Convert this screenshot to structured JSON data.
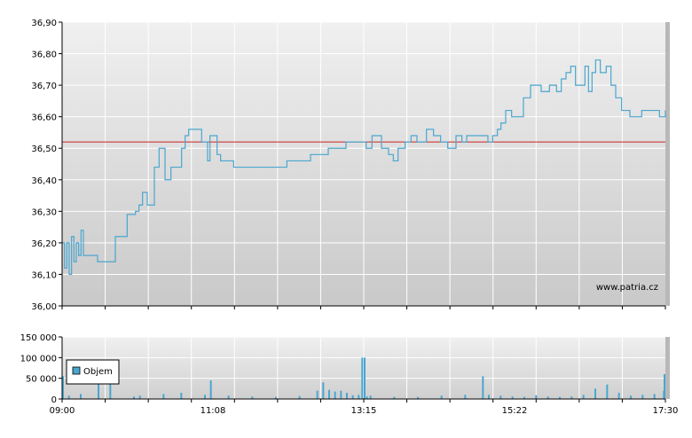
{
  "chart_data": [
    {
      "type": "line",
      "watermark": "www.patria.cz",
      "y_ticks": [
        "36,00",
        "36,10",
        "36,20",
        "36,30",
        "36,40",
        "36,50",
        "36,60",
        "36,70",
        "36,80",
        "36,90"
      ],
      "ylim": [
        36.0,
        36.9
      ],
      "xlim": [
        "09:00",
        "17:30"
      ],
      "x_tick_labels": [
        "09:00",
        "11:08",
        "13:15",
        "15:22",
        "17:30"
      ],
      "reference_line": 36.52,
      "colors": {
        "line": "#4aa6cf",
        "reference": "#cc2222",
        "grid": "#ffffff"
      },
      "series": [
        {
          "x": [
            "09:00",
            "09:02",
            "09:04",
            "09:06",
            "09:08",
            "09:10",
            "09:12",
            "09:14",
            "09:16",
            "09:18",
            "09:20",
            "09:24",
            "09:30",
            "09:45",
            "09:55",
            "10:02",
            "10:05",
            "10:08",
            "10:12",
            "10:18",
            "10:22",
            "10:27",
            "10:32",
            "10:35",
            "10:38",
            "10:41",
            "10:44",
            "10:47",
            "10:55",
            "10:58",
            "11:03",
            "11:05",
            "11:08",
            "11:11",
            "11:14",
            "11:17",
            "11:20",
            "11:25",
            "11:35",
            "11:40",
            "11:50",
            "12:10",
            "12:30",
            "12:45",
            "13:00",
            "13:10",
            "13:12",
            "13:17",
            "13:22",
            "13:30",
            "13:36",
            "13:40",
            "13:44",
            "13:50",
            "13:55",
            "14:00",
            "14:08",
            "14:14",
            "14:20",
            "14:26",
            "14:33",
            "14:38",
            "14:42",
            "14:46",
            "14:52",
            "15:00",
            "15:04",
            "15:08",
            "15:11",
            "15:15",
            "15:20",
            "15:26",
            "15:30",
            "15:36",
            "15:40",
            "15:45",
            "15:52",
            "15:58",
            "16:02",
            "16:06",
            "16:10",
            "16:14",
            "16:19",
            "16:22",
            "16:25",
            "16:28",
            "16:31",
            "16:35",
            "16:40",
            "16:44",
            "16:48",
            "16:53",
            "17:00",
            "17:05",
            "17:10",
            "17:15",
            "17:20",
            "17:25",
            "17:30"
          ],
          "values": [
            36.2,
            36.12,
            36.2,
            36.1,
            36.22,
            36.14,
            36.2,
            36.16,
            36.24,
            36.16,
            36.16,
            36.16,
            36.14,
            36.22,
            36.29,
            36.3,
            36.32,
            36.36,
            36.32,
            36.44,
            36.5,
            36.4,
            36.44,
            36.44,
            36.44,
            36.5,
            36.54,
            36.56,
            36.56,
            36.52,
            36.46,
            36.54,
            36.54,
            36.48,
            36.46,
            36.46,
            36.46,
            36.44,
            36.44,
            36.44,
            36.44,
            36.46,
            36.48,
            36.5,
            36.52,
            36.52,
            36.52,
            36.5,
            36.54,
            36.5,
            36.48,
            36.46,
            36.5,
            36.52,
            36.54,
            36.52,
            36.56,
            36.54,
            36.52,
            36.5,
            36.54,
            36.52,
            36.54,
            36.54,
            36.54,
            36.52,
            36.54,
            36.56,
            36.58,
            36.62,
            36.6,
            36.6,
            36.66,
            36.7,
            36.7,
            36.68,
            36.7,
            36.68,
            36.72,
            36.74,
            36.76,
            36.7,
            36.7,
            36.76,
            36.68,
            36.74,
            36.78,
            36.74,
            36.76,
            36.7,
            36.66,
            36.62,
            36.6,
            36.6,
            36.62,
            36.62,
            36.62,
            36.6,
            36.62
          ]
        }
      ]
    },
    {
      "type": "bar",
      "legend": "Objem",
      "y_ticks": [
        "0",
        "50 000",
        "100 000",
        "150 000"
      ],
      "ylim": [
        0,
        150000
      ],
      "x_tick_labels": [
        "09:00",
        "11:08",
        "13:15",
        "15:22",
        "17:30"
      ],
      "colors": {
        "bar": "#4aa6cf",
        "legend_swatch": "#4aa6cf"
      },
      "series": [
        {
          "x": [
            "09:00",
            "09:05",
            "09:15",
            "09:30",
            "09:40",
            "10:00",
            "10:05",
            "10:25",
            "10:40",
            "11:00",
            "11:05",
            "11:20",
            "11:40",
            "12:00",
            "12:20",
            "12:35",
            "12:40",
            "12:45",
            "12:50",
            "12:55",
            "13:00",
            "13:05",
            "13:10",
            "13:13",
            "13:15",
            "13:17",
            "13:20",
            "13:40",
            "14:00",
            "14:20",
            "14:40",
            "14:55",
            "15:00",
            "15:10",
            "15:20",
            "15:30",
            "15:40",
            "15:50",
            "16:00",
            "16:10",
            "16:20",
            "16:30",
            "16:40",
            "16:50",
            "17:00",
            "17:10",
            "17:20",
            "17:28",
            "17:30"
          ],
          "values": [
            55000,
            8000,
            12000,
            40000,
            60000,
            6000,
            8000,
            12000,
            15000,
            10000,
            45000,
            8000,
            6000,
            5000,
            7000,
            20000,
            40000,
            22000,
            18000,
            20000,
            15000,
            9000,
            10000,
            100000,
            100000,
            6000,
            8000,
            5000,
            5000,
            8000,
            10000,
            55000,
            10000,
            8000,
            6000,
            5000,
            9000,
            6000,
            5000,
            6000,
            10000,
            25000,
            35000,
            15000,
            8000,
            10000,
            12000,
            20000,
            60000
          ]
        }
      ]
    }
  ]
}
